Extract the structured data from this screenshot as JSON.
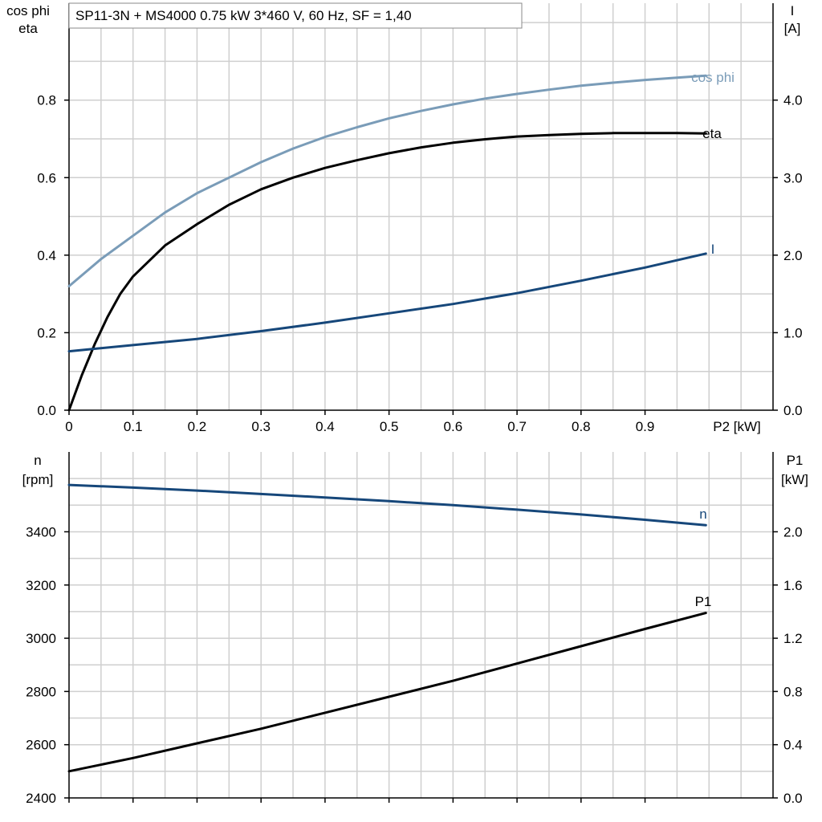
{
  "chart_data": [
    {
      "type": "line",
      "title": "SP11-3N + MS4000   0.75 kW   3*460 V, 60 Hz, SF = 1,40",
      "xlabel": "P2 [kW]",
      "ylabel_left": [
        "cos phi",
        "eta"
      ],
      "ylabel_right": [
        "I",
        "[A]"
      ],
      "xlim": [
        0,
        1.1
      ],
      "ylim_left": [
        0,
        1.05
      ],
      "ylim_right": [
        0,
        5.25
      ],
      "xticks": [
        0,
        0.1,
        0.2,
        0.3,
        0.4,
        0.5,
        0.6,
        0.7,
        0.8,
        0.9
      ],
      "xtick_labels": [
        "0",
        "0.1",
        "0.2",
        "0.3",
        "0.4",
        "0.5",
        "0.6",
        "0.7",
        "0.8",
        "0.9"
      ],
      "yticks_left": [
        0,
        0.2,
        0.4,
        0.6,
        0.8
      ],
      "ytick_labels_left": [
        "0.0",
        "0.2",
        "0.4",
        "0.6",
        "0.8"
      ],
      "yticks_right": [
        0,
        1,
        2,
        3,
        4
      ],
      "ytick_labels_right": [
        "0.0",
        "1.0",
        "2.0",
        "3.0",
        "4.0"
      ],
      "grid": true,
      "series": [
        {
          "name": "cos phi",
          "axis": "left",
          "color": "#7a9cb8",
          "x": [
            0,
            0.05,
            0.1,
            0.15,
            0.2,
            0.25,
            0.3,
            0.35,
            0.4,
            0.45,
            0.5,
            0.55,
            0.6,
            0.65,
            0.7,
            0.75,
            0.8,
            0.85,
            0.9,
            0.95,
            0.995
          ],
          "y": [
            0.32,
            0.39,
            0.45,
            0.51,
            0.56,
            0.6,
            0.64,
            0.675,
            0.705,
            0.73,
            0.753,
            0.772,
            0.789,
            0.804,
            0.816,
            0.827,
            0.837,
            0.845,
            0.852,
            0.858,
            0.863
          ]
        },
        {
          "name": "eta",
          "axis": "left",
          "color": "#000000",
          "x": [
            0,
            0.02,
            0.04,
            0.06,
            0.08,
            0.1,
            0.15,
            0.2,
            0.25,
            0.3,
            0.35,
            0.4,
            0.45,
            0.5,
            0.55,
            0.6,
            0.65,
            0.7,
            0.75,
            0.8,
            0.85,
            0.9,
            0.95,
            0.995
          ],
          "y": [
            0.0,
            0.09,
            0.17,
            0.24,
            0.3,
            0.345,
            0.425,
            0.48,
            0.53,
            0.57,
            0.6,
            0.625,
            0.645,
            0.663,
            0.678,
            0.69,
            0.699,
            0.706,
            0.71,
            0.713,
            0.715,
            0.715,
            0.715,
            0.714
          ]
        },
        {
          "name": "I",
          "axis": "right",
          "color": "#16477a",
          "x": [
            0,
            0.1,
            0.2,
            0.3,
            0.4,
            0.5,
            0.6,
            0.7,
            0.8,
            0.9,
            0.995
          ],
          "y": [
            0.76,
            0.84,
            0.92,
            1.02,
            1.13,
            1.25,
            1.37,
            1.51,
            1.67,
            1.84,
            2.02
          ]
        }
      ]
    },
    {
      "type": "line",
      "xlabel": "",
      "ylabel_left": [
        "n",
        "[rpm]"
      ],
      "ylabel_right": [
        "P1",
        "[kW]"
      ],
      "xlim": [
        0,
        1.1
      ],
      "ylim_left": [
        2400,
        3700
      ],
      "ylim_right": [
        0,
        2.6
      ],
      "xticks": [
        0,
        0.1,
        0.2,
        0.3,
        0.4,
        0.5,
        0.6,
        0.7,
        0.8,
        0.9
      ],
      "yticks_left": [
        2400,
        2600,
        2800,
        3000,
        3200,
        3400
      ],
      "ytick_labels_left": [
        "2400",
        "2600",
        "2800",
        "3000",
        "3200",
        "3400"
      ],
      "yticks_right": [
        0,
        0.4,
        0.8,
        1.2,
        1.6,
        2.0
      ],
      "ytick_labels_right": [
        "0.0",
        "0.4",
        "0.8",
        "1.2",
        "1.6",
        "2.0"
      ],
      "grid": true,
      "series": [
        {
          "name": "n",
          "axis": "left",
          "color": "#16477a",
          "x": [
            0,
            0.1,
            0.2,
            0.3,
            0.4,
            0.5,
            0.6,
            0.7,
            0.8,
            0.9,
            0.995
          ],
          "y": [
            3576,
            3566,
            3555,
            3542,
            3529,
            3515,
            3500,
            3483,
            3465,
            3445,
            3425
          ]
        },
        {
          "name": "P1",
          "axis": "right",
          "color": "#000000",
          "x": [
            0,
            0.1,
            0.2,
            0.3,
            0.4,
            0.5,
            0.6,
            0.7,
            0.8,
            0.9,
            0.995
          ],
          "y": [
            0.2,
            0.3,
            0.41,
            0.52,
            0.64,
            0.76,
            0.88,
            1.01,
            1.14,
            1.27,
            1.39
          ]
        }
      ]
    }
  ]
}
